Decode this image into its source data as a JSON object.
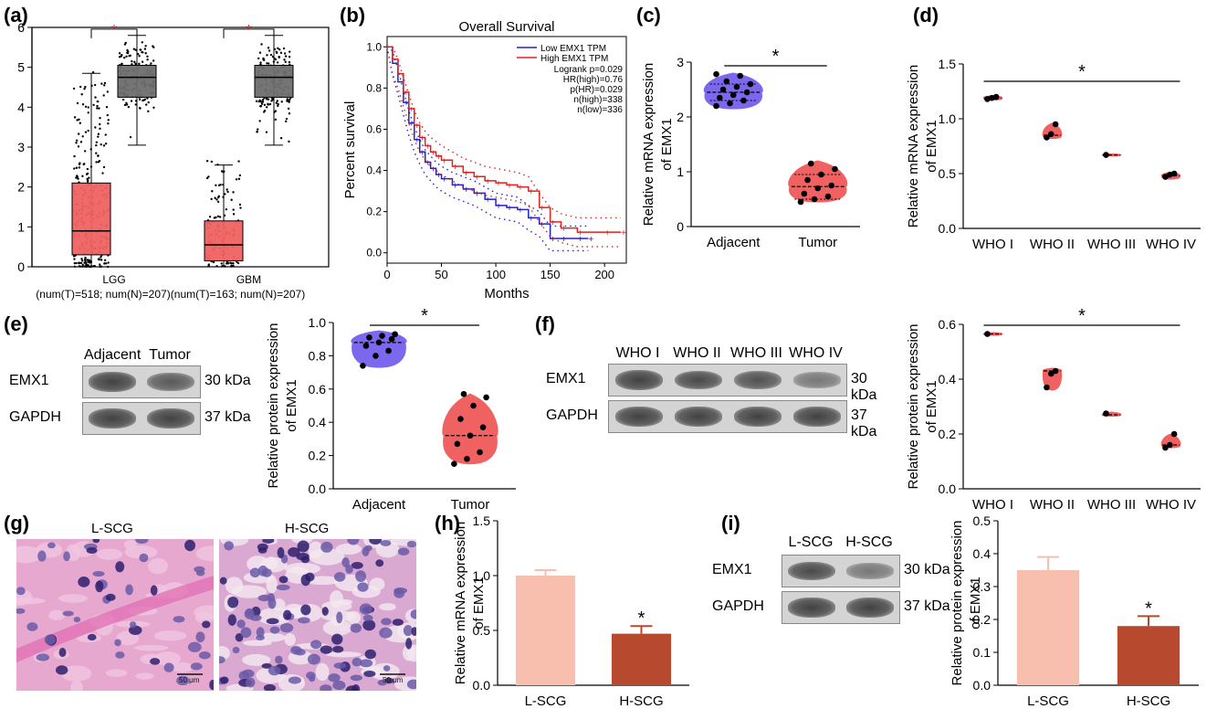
{
  "panels": {
    "a": "(a)",
    "b": "(b)",
    "c": "(c)",
    "d": "(d)",
    "e": "(e)",
    "f": "(f)",
    "g": "(g)",
    "h": "(h)",
    "i": "(i)"
  },
  "colors": {
    "tumor_red": "#f06262",
    "normal_grey": "#6e6e6e",
    "violin_blue": "#7b68ee",
    "violin_red": "#f06262",
    "low_line": "#2222cc",
    "high_line": "#dd2222",
    "bar_light": "#f8bfae",
    "bar_dark": "#b6492e",
    "sig_star_red": "#e32020"
  },
  "chart_data": [
    {
      "id": "a",
      "type": "box",
      "ylim": [
        0,
        6
      ],
      "yticks": [
        "0",
        "1",
        "2",
        "3",
        "4",
        "5",
        "6"
      ],
      "groups": [
        {
          "label": "LGG",
          "sub": "(num(T)=518; num(N)=207)",
          "sig": "*",
          "boxes": [
            {
              "kind": "tumor",
              "q1": 0.3,
              "median": 0.9,
              "q3": 2.1,
              "whisker_low": 0.0,
              "whisker_high": 4.85
            },
            {
              "kind": "normal",
              "q1": 4.25,
              "median": 4.75,
              "q3": 5.05,
              "whisker_low": 3.05,
              "whisker_high": 5.8
            }
          ]
        },
        {
          "label": "GBM",
          "sub": "(num(T)=163; num(N)=207)",
          "sig": "*",
          "boxes": [
            {
              "kind": "tumor",
              "q1": 0.15,
              "median": 0.55,
              "q3": 1.15,
              "whisker_low": 0.0,
              "whisker_high": 2.55
            },
            {
              "kind": "normal",
              "q1": 4.25,
              "median": 4.75,
              "q3": 5.05,
              "whisker_low": 3.05,
              "whisker_high": 5.8
            }
          ]
        }
      ]
    },
    {
      "id": "b",
      "type": "line",
      "title": "Overall Survival",
      "xlabel": "Months",
      "ylabel": "Percent survival",
      "xlim": [
        0,
        220
      ],
      "ylim": [
        -0.05,
        1.05
      ],
      "xticks": [
        "0",
        "50",
        "100",
        "150",
        "200"
      ],
      "yticks": [
        "0.0",
        "0.2",
        "0.4",
        "0.6",
        "0.8",
        "1.0"
      ],
      "legend": [
        "Low EMX1 TPM",
        "High EMX1 TPM"
      ],
      "stats": [
        "Logrank p=0.029",
        "HR(high)=0.76",
        "p(HR)=0.029",
        "n(high)=338",
        "n(low)=336"
      ],
      "series": [
        {
          "name": "Low EMX1 TPM",
          "x": [
            0,
            5,
            10,
            15,
            20,
            25,
            30,
            35,
            40,
            45,
            50,
            60,
            70,
            80,
            90,
            100,
            110,
            120,
            130,
            140,
            150,
            160,
            175,
            185
          ],
          "y": [
            1.0,
            0.92,
            0.83,
            0.73,
            0.63,
            0.55,
            0.49,
            0.44,
            0.41,
            0.38,
            0.36,
            0.33,
            0.31,
            0.29,
            0.26,
            0.23,
            0.22,
            0.21,
            0.17,
            0.14,
            0.07,
            0.07,
            0.07,
            0.07
          ]
        },
        {
          "name": "High EMX1 TPM",
          "x": [
            0,
            5,
            10,
            15,
            20,
            25,
            30,
            35,
            40,
            45,
            50,
            60,
            70,
            80,
            90,
            100,
            110,
            120,
            130,
            140,
            150,
            160,
            175,
            200,
            215
          ],
          "y": [
            1.0,
            0.94,
            0.87,
            0.78,
            0.7,
            0.62,
            0.56,
            0.52,
            0.49,
            0.47,
            0.45,
            0.42,
            0.39,
            0.37,
            0.35,
            0.34,
            0.33,
            0.32,
            0.3,
            0.22,
            0.15,
            0.12,
            0.1,
            0.1,
            0.1
          ]
        }
      ]
    },
    {
      "id": "c",
      "type": "violin",
      "ylabel": [
        "Relative mRNA expression",
        "of EMX1"
      ],
      "ylim": [
        0,
        3
      ],
      "yticks": [
        "0",
        "1",
        "2",
        "3"
      ],
      "categories": [
        "Adjacent",
        "Tumor"
      ],
      "sig": "*",
      "groups": [
        {
          "color": "violin_blue",
          "min": 2.15,
          "max": 2.8,
          "q1": 2.3,
          "median": 2.45,
          "q3": 2.6,
          "points": [
            2.2,
            2.25,
            2.3,
            2.35,
            2.4,
            2.45,
            2.5,
            2.55,
            2.6,
            2.65,
            2.75,
            2.78
          ]
        },
        {
          "color": "violin_red",
          "min": 0.45,
          "max": 1.2,
          "q1": 0.5,
          "median": 0.73,
          "q3": 0.95,
          "points": [
            0.45,
            0.5,
            0.55,
            0.6,
            0.7,
            0.75,
            0.85,
            0.95,
            1.05,
            1.15
          ]
        }
      ]
    },
    {
      "id": "d",
      "type": "violin",
      "ylabel": [
        "Relative mRNA expression",
        "of EMX1"
      ],
      "ylim": [
        0,
        1.5
      ],
      "yticks": [
        "0.0",
        "0.5",
        "1.0",
        "1.5"
      ],
      "categories": [
        "WHO I",
        "WHO II",
        "WHO III",
        "WHO IV"
      ],
      "sig": "*",
      "groups": [
        {
          "color": "violin_red",
          "min": 1.17,
          "max": 1.21,
          "median": 1.19,
          "points": [
            1.18,
            1.19,
            1.2
          ]
        },
        {
          "color": "violin_red",
          "min": 0.82,
          "max": 0.96,
          "median": 0.85,
          "points": [
            0.83,
            0.86,
            0.95
          ]
        },
        {
          "color": "violin_red",
          "min": 0.66,
          "max": 0.68,
          "median": 0.67,
          "points": [
            0.67
          ]
        },
        {
          "color": "violin_red",
          "min": 0.45,
          "max": 0.51,
          "median": 0.48,
          "points": [
            0.47,
            0.49,
            0.5
          ]
        }
      ]
    },
    {
      "id": "e",
      "type": "violin",
      "ylabel": [
        "Relative protein expression",
        "of EMX1"
      ],
      "ylim": [
        0,
        1.0
      ],
      "yticks": [
        "0.0",
        "0.2",
        "0.4",
        "0.6",
        "0.8",
        "1.0"
      ],
      "categories": [
        "Adjacent",
        "Tumor"
      ],
      "sig": "*",
      "groups": [
        {
          "color": "violin_blue",
          "min": 0.73,
          "max": 0.95,
          "median": 0.88,
          "points": [
            0.74,
            0.8,
            0.83,
            0.86,
            0.88,
            0.9,
            0.91,
            0.92,
            0.93
          ]
        },
        {
          "color": "violin_red",
          "min": 0.15,
          "max": 0.57,
          "median": 0.32,
          "points": [
            0.15,
            0.18,
            0.22,
            0.27,
            0.32,
            0.37,
            0.42,
            0.5,
            0.55,
            0.57
          ]
        }
      ]
    },
    {
      "id": "f",
      "type": "violin",
      "ylabel": [
        "Relative protein expression",
        "of EMX1"
      ],
      "ylim": [
        0,
        0.6
      ],
      "yticks": [
        "0.0",
        "0.2",
        "0.4",
        "0.6"
      ],
      "categories": [
        "WHO I",
        "WHO II",
        "WHO III",
        "WHO IV"
      ],
      "sig": "*",
      "groups": [
        {
          "color": "violin_red",
          "min": 0.56,
          "max": 0.57,
          "median": 0.565,
          "points": [
            0.565
          ]
        },
        {
          "color": "violin_red",
          "min": 0.36,
          "max": 0.44,
          "median": 0.43,
          "points": [
            0.37,
            0.42,
            0.43
          ]
        },
        {
          "color": "violin_red",
          "min": 0.265,
          "max": 0.28,
          "median": 0.27,
          "points": [
            0.275
          ]
        },
        {
          "color": "violin_red",
          "min": 0.15,
          "max": 0.2,
          "median": 0.16,
          "points": [
            0.15,
            0.16,
            0.2
          ]
        }
      ]
    },
    {
      "id": "h",
      "type": "bar",
      "ylabel": [
        "Relative mRNA expression",
        "of EMX1"
      ],
      "ylim": [
        0,
        1.5
      ],
      "yticks": [
        "0.0",
        "0.5",
        "1.0",
        "1.5"
      ],
      "categories": [
        "L-SCG",
        "H-SCG"
      ],
      "values": [
        1.0,
        0.47
      ],
      "errors": [
        0.05,
        0.07
      ],
      "sig": [
        "",
        "*"
      ]
    },
    {
      "id": "i",
      "type": "bar",
      "ylabel": [
        "Relative protein expression",
        "of EMX1"
      ],
      "ylim": [
        0,
        0.5
      ],
      "yticks": [
        "0.0",
        "0.1",
        "0.2",
        "0.3",
        "0.4",
        "0.5"
      ],
      "categories": [
        "L-SCG",
        "H-SCG"
      ],
      "values": [
        0.35,
        0.18
      ],
      "errors": [
        0.04,
        0.03
      ],
      "sig": [
        "",
        "*"
      ]
    }
  ],
  "blots": {
    "e": {
      "cols": [
        "Adjacent",
        "Tumor"
      ],
      "rows": [
        {
          "name": "EMX1",
          "kda": "30 kDa",
          "intensity": [
            0.95,
            0.8
          ]
        },
        {
          "name": "GAPDH",
          "kda": "37 kDa",
          "intensity": [
            0.95,
            0.95
          ]
        }
      ]
    },
    "f": {
      "cols": [
        "WHO I",
        "WHO II",
        "WHO III",
        "WHO IV"
      ],
      "rows": [
        {
          "name": "EMX1",
          "kda": "30 kDa",
          "intensity": [
            0.95,
            0.9,
            0.85,
            0.6
          ]
        },
        {
          "name": "GAPDH",
          "kda": "37 kDa",
          "intensity": [
            0.95,
            0.95,
            0.95,
            0.95
          ]
        }
      ]
    },
    "i": {
      "cols": [
        "L-SCG",
        "H-SCG"
      ],
      "rows": [
        {
          "name": "EMX1",
          "kda": "30 kDa",
          "intensity": [
            0.9,
            0.6
          ]
        },
        {
          "name": "GAPDH",
          "kda": "37 kDa",
          "intensity": [
            0.95,
            0.95
          ]
        }
      ]
    }
  },
  "histology": {
    "left_title": "L-SCG",
    "right_title": "H-SCG",
    "scale_left": "50 μm",
    "scale_right": "50 μm"
  }
}
